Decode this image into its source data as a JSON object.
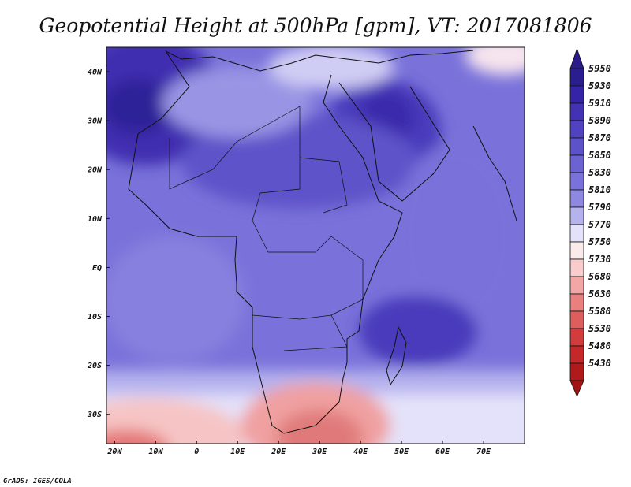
{
  "chart_data": {
    "type": "heatmap",
    "title": "Geopotential Height at 500hPa [gpm], VT: 2017081806",
    "xlabel": "",
    "ylabel": "",
    "xlim": [
      -22,
      80
    ],
    "ylim": [
      -36,
      45
    ],
    "x_ticks": [
      {
        "value": -20,
        "label": "20W"
      },
      {
        "value": -10,
        "label": "10W"
      },
      {
        "value": 0,
        "label": "0"
      },
      {
        "value": 10,
        "label": "10E"
      },
      {
        "value": 20,
        "label": "20E"
      },
      {
        "value": 30,
        "label": "30E"
      },
      {
        "value": 40,
        "label": "40E"
      },
      {
        "value": 50,
        "label": "50E"
      },
      {
        "value": 60,
        "label": "60E"
      },
      {
        "value": 70,
        "label": "70E"
      }
    ],
    "y_ticks": [
      {
        "value": 40,
        "label": "40N"
      },
      {
        "value": 30,
        "label": "30N"
      },
      {
        "value": 20,
        "label": "20N"
      },
      {
        "value": 10,
        "label": "10N"
      },
      {
        "value": 0,
        "label": "EQ"
      },
      {
        "value": -10,
        "label": "10S"
      },
      {
        "value": -20,
        "label": "20S"
      },
      {
        "value": -30,
        "label": "30S"
      }
    ],
    "colorbar": {
      "labels": [
        "5950",
        "5930",
        "5910",
        "5890",
        "5870",
        "5850",
        "5830",
        "5810",
        "5790",
        "5770",
        "5750",
        "5730",
        "5680",
        "5630",
        "5580",
        "5530",
        "5480",
        "5430"
      ],
      "colors": [
        "#2a1e8f",
        "#3525a6",
        "#4332b4",
        "#5142c0",
        "#5e52c9",
        "#6c62d2",
        "#7a72da",
        "#8e88e0",
        "#b6b2ee",
        "#e4e2fa",
        "#fbeaea",
        "#f8cccc",
        "#f2a6a6",
        "#e88080",
        "#de5d5d",
        "#d23c3c",
        "#c42828",
        "#b01a1a"
      ],
      "top_arrow_color": "#2a1a8a",
      "bottom_arrow_color": "#a01414"
    },
    "annotations": {
      "credit": "GrADS: IGES/COLA"
    }
  }
}
